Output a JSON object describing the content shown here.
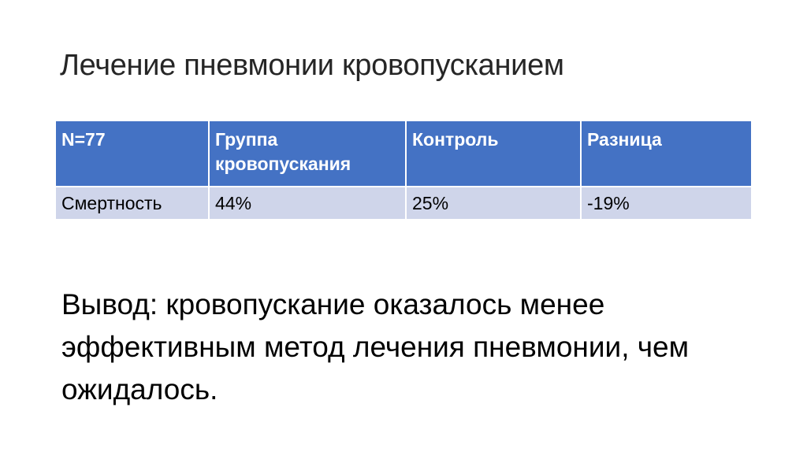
{
  "title": "Лечение пневмонии кровопусканием",
  "table": {
    "headers": [
      "N=77",
      "Группа кровопускания",
      "Контроль",
      "Разница"
    ],
    "rows": [
      [
        "Смертность",
        "44%",
        "25%",
        "-19%"
      ]
    ]
  },
  "conclusion": "Вывод: кровопускание оказалось менее эффективным метод лечения пневмонии, чем ожидалось.",
  "colors": {
    "header": "#4472c4",
    "row": "#cfd5ea"
  }
}
